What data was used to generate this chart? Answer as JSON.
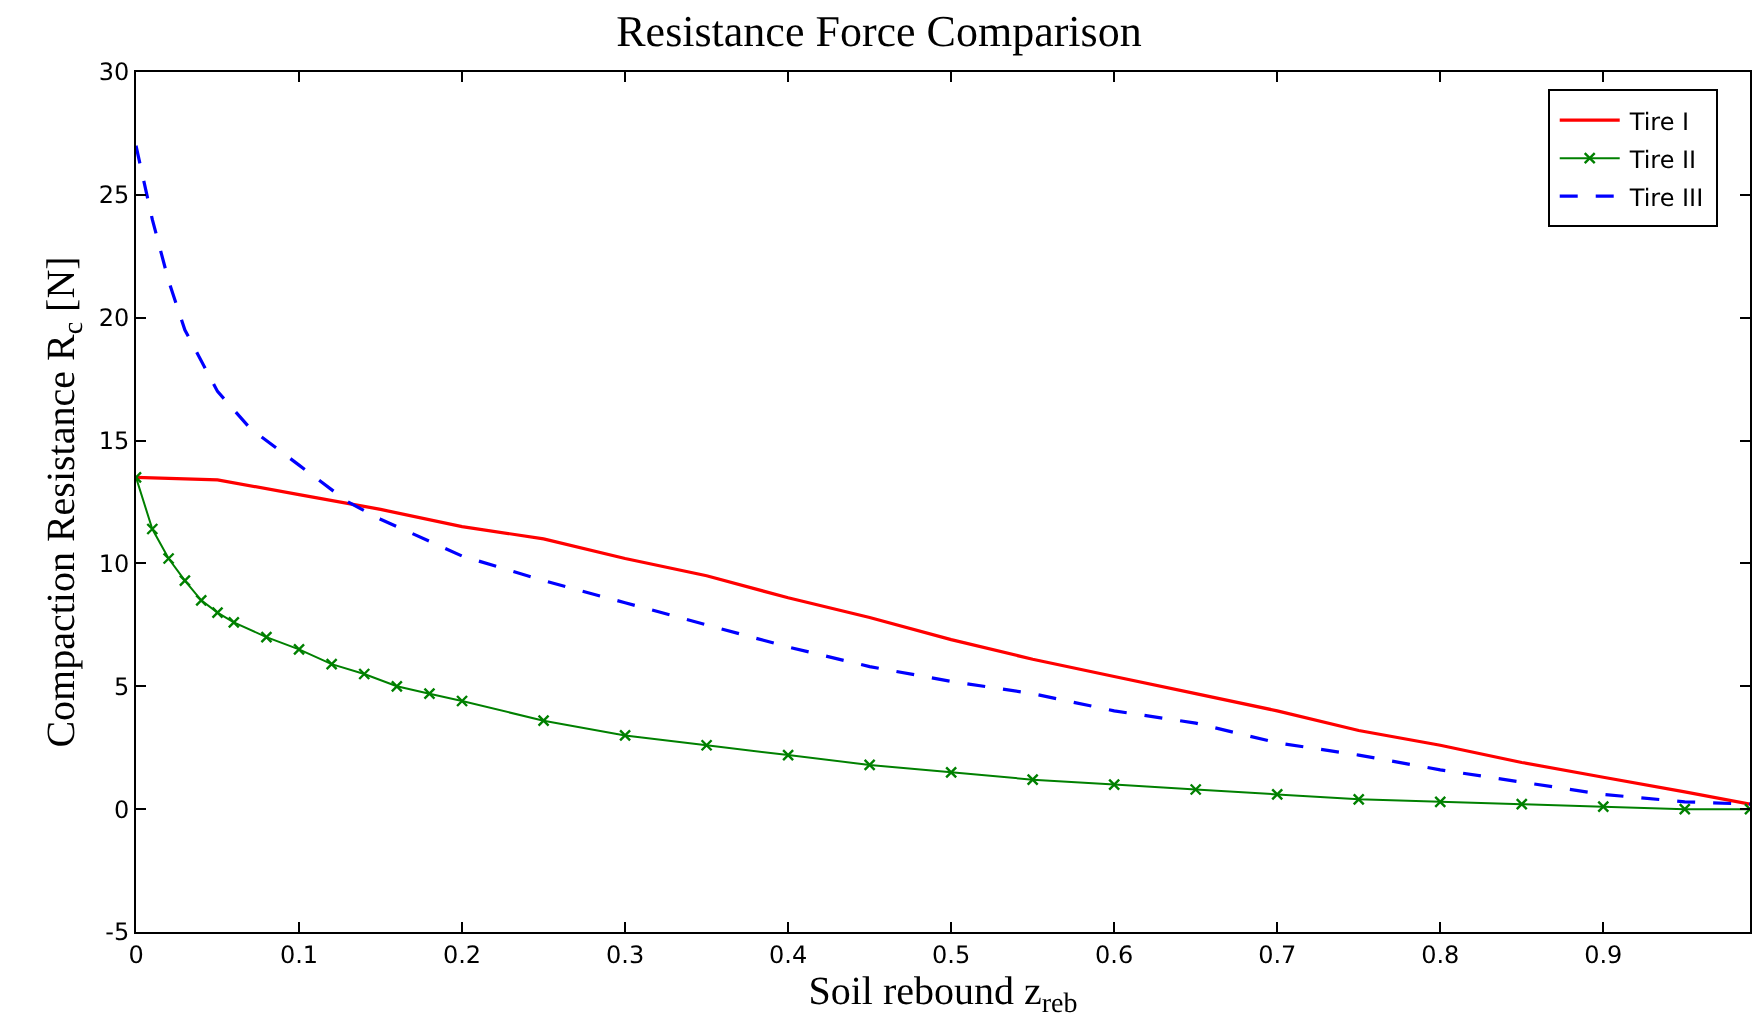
{
  "chart_data": {
    "type": "line",
    "title": "Resistance Force Comparison",
    "xlabel": "Soil rebound z$_{reb}$",
    "ylabel": "Compaction Resistance R$_{c}$ [N]",
    "xlim": [
      0,
      0.99
    ],
    "ylim": [
      -5,
      30
    ],
    "xticks": [
      0,
      0.1,
      0.2,
      0.3,
      0.4,
      0.5,
      0.6,
      0.7,
      0.8,
      0.9
    ],
    "yticks": [
      -5,
      0,
      5,
      10,
      15,
      20,
      25,
      30
    ],
    "legend": "top right",
    "series": [
      {
        "name": "Tire I",
        "color": "#ff0000",
        "line_style": "solid",
        "marker": "none",
        "x": [
          0,
          0.05,
          0.1,
          0.15,
          0.2,
          0.25,
          0.3,
          0.35,
          0.4,
          0.45,
          0.5,
          0.55,
          0.6,
          0.65,
          0.7,
          0.75,
          0.8,
          0.85,
          0.9,
          0.95,
          0.99
        ],
        "values": [
          13.5,
          13.4,
          12.8,
          12.2,
          11.5,
          11,
          10.2,
          9.5,
          8.6,
          7.8,
          6.9,
          6.1,
          5.4,
          4.7,
          4.0,
          3.2,
          2.6,
          1.9,
          1.3,
          0.7,
          0.2
        ]
      },
      {
        "name": "Tire II",
        "color": "#008000",
        "line_style": "solid",
        "marker": "cross",
        "x": [
          0,
          0.01,
          0.02,
          0.03,
          0.04,
          0.05,
          0.06,
          0.08,
          0.1,
          0.12,
          0.14,
          0.16,
          0.18,
          0.2,
          0.25,
          0.3,
          0.35,
          0.4,
          0.45,
          0.5,
          0.55,
          0.6,
          0.65,
          0.7,
          0.75,
          0.8,
          0.85,
          0.9,
          0.95,
          0.99
        ],
        "values": [
          13.5,
          11.4,
          10.2,
          9.3,
          8.5,
          8.0,
          7.6,
          7.0,
          6.5,
          5.9,
          5.5,
          5.0,
          4.7,
          4.4,
          3.6,
          3.0,
          2.6,
          2.2,
          1.8,
          1.5,
          1.2,
          1.0,
          0.8,
          0.6,
          0.4,
          0.3,
          0.2,
          0.1,
          0.0,
          0.0
        ]
      },
      {
        "name": "Tire III",
        "color": "#0000ff",
        "line_style": "dashed",
        "marker": "none",
        "x": [
          0,
          0.01,
          0.02,
          0.03,
          0.05,
          0.07,
          0.1,
          0.13,
          0.15,
          0.2,
          0.25,
          0.3,
          0.35,
          0.4,
          0.45,
          0.5,
          0.55,
          0.6,
          0.65,
          0.7,
          0.75,
          0.8,
          0.85,
          0.9,
          0.95,
          0.99
        ],
        "values": [
          27,
          24,
          21.5,
          19.5,
          17,
          15.5,
          14,
          12.5,
          11.8,
          10.3,
          9.3,
          8.4,
          7.5,
          6.6,
          5.8,
          5.2,
          4.7,
          4.0,
          3.5,
          2.7,
          2.2,
          1.6,
          1.1,
          0.6,
          0.3,
          0.2
        ]
      }
    ]
  }
}
